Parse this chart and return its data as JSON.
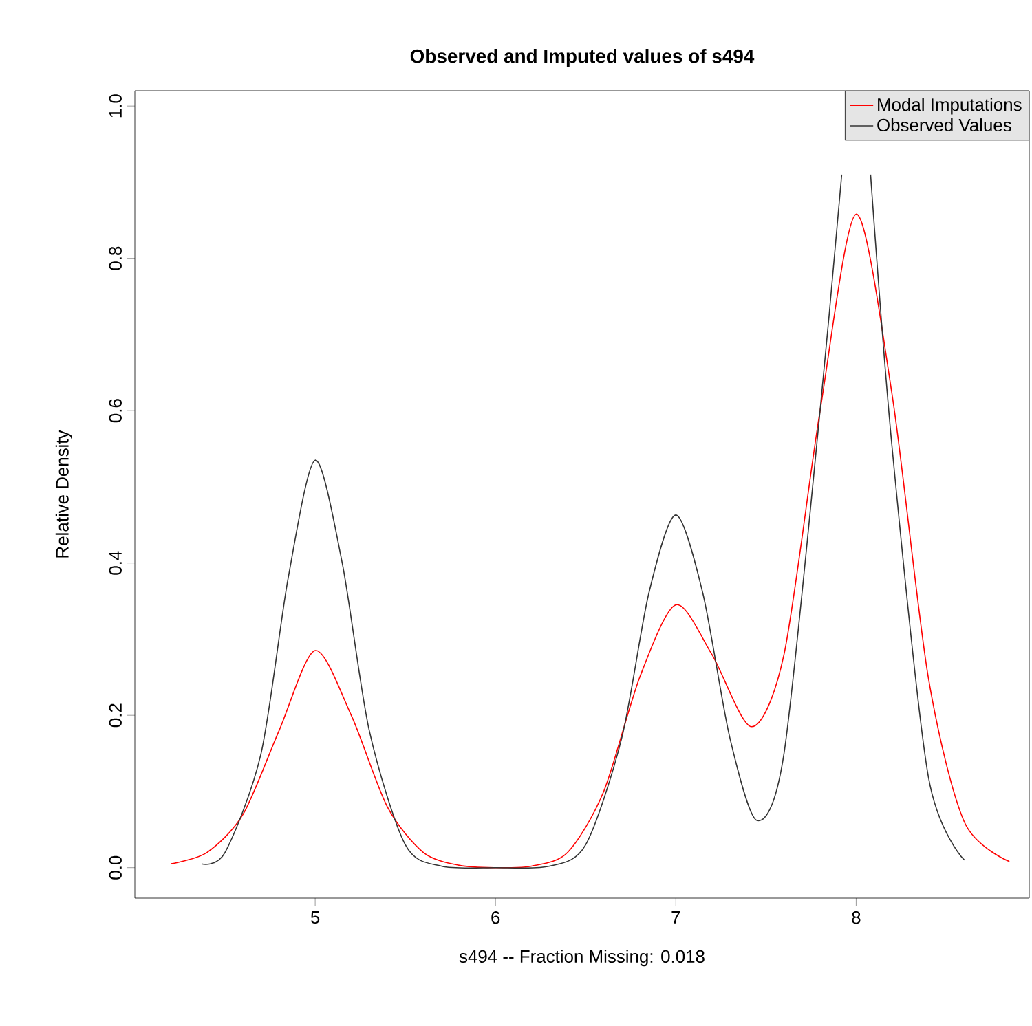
{
  "chart_data": {
    "type": "line",
    "title": "Observed and Imputed values of s494",
    "xlabel": "s494 -- Fraction Missing: 0.018",
    "ylabel": "Relative Density",
    "xlim": [
      4.0,
      8.96
    ],
    "ylim": [
      -0.04,
      1.02
    ],
    "xticks": [
      5,
      6,
      7,
      8
    ],
    "yticks": [
      {
        "value": 0,
        "label": "0.0"
      },
      {
        "value": 0.2,
        "label": "0.2"
      },
      {
        "value": 0.4,
        "label": "0.4"
      },
      {
        "value": 0.6,
        "label": "0.6"
      },
      {
        "value": 0.8,
        "label": "0.8"
      },
      {
        "value": 1.0,
        "label": "1.0"
      }
    ],
    "legend": "top right",
    "grid": false,
    "line_style": "solid",
    "series": [
      {
        "name": "Modal Imputations",
        "color": "#ff0000",
        "x": [
          4.2,
          4.4,
          4.6,
          4.8,
          5.0,
          5.2,
          5.4,
          5.6,
          5.8,
          6.0,
          6.2,
          6.4,
          6.6,
          6.8,
          7.0,
          7.2,
          7.42,
          7.6,
          7.8,
          8.0,
          8.2,
          8.4,
          8.6,
          8.85
        ],
        "values": [
          0.005,
          0.02,
          0.07,
          0.18,
          0.285,
          0.2,
          0.08,
          0.02,
          0.003,
          0.0,
          0.002,
          0.02,
          0.1,
          0.25,
          0.345,
          0.28,
          0.185,
          0.28,
          0.6,
          0.858,
          0.62,
          0.25,
          0.06,
          0.008
        ]
      },
      {
        "name": "Observed Values",
        "color": "#333333",
        "x": [
          4.37,
          4.5,
          4.7,
          4.85,
          5.0,
          5.15,
          5.3,
          5.5,
          5.7,
          6.0,
          6.3,
          6.5,
          6.7,
          6.85,
          7.0,
          7.15,
          7.3,
          7.45,
          7.6,
          7.8,
          7.92,
          8.0,
          8.08,
          8.2,
          8.4,
          8.6
        ],
        "values": [
          0.005,
          0.02,
          0.15,
          0.38,
          0.535,
          0.4,
          0.18,
          0.03,
          0.002,
          0.0,
          0.002,
          0.03,
          0.17,
          0.36,
          0.463,
          0.36,
          0.17,
          0.062,
          0.15,
          0.6,
          0.91,
          null,
          0.91,
          0.55,
          0.12,
          0.01
        ]
      }
    ]
  }
}
